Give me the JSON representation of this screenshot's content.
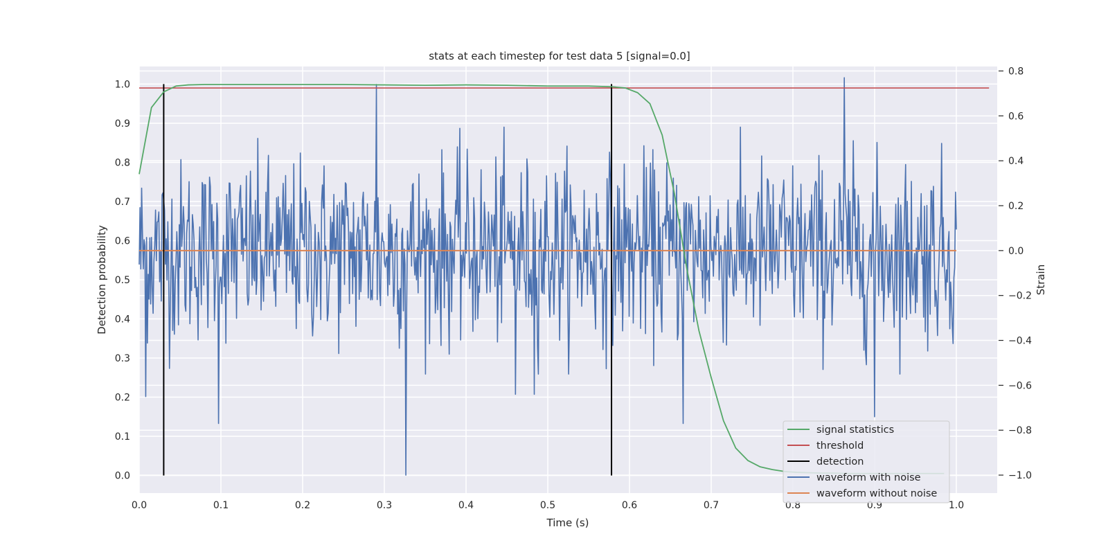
{
  "chart_data": {
    "type": "line",
    "title": "stats at each timestep for test data 5 [signal=0.0]",
    "xlabel": "Time (s)",
    "ylabel": "Detection probability",
    "ylabel_right": "Strain",
    "xlim": [
      0.0,
      1.05
    ],
    "ylim": [
      -0.045,
      1.045
    ],
    "ylim_right": [
      -1.08,
      0.82
    ],
    "grid": true,
    "legend_position": "lower right",
    "x_ticks": [
      0.0,
      0.1,
      0.2,
      0.3,
      0.4,
      0.5,
      0.6,
      0.7,
      0.8,
      0.9,
      1.0
    ],
    "x_tick_labels": [
      "0.0",
      "0.1",
      "0.2",
      "0.3",
      "0.4",
      "0.5",
      "0.6",
      "0.7",
      "0.8",
      "0.9",
      "1.0"
    ],
    "y_ticks": [
      0.0,
      0.1,
      0.2,
      0.3,
      0.4,
      0.5,
      0.6,
      0.7,
      0.8,
      0.9,
      1.0
    ],
    "y_tick_labels": [
      "0.0",
      "0.1",
      "0.2",
      "0.3",
      "0.4",
      "0.5",
      "0.6",
      "0.7",
      "0.8",
      "0.9",
      "1.0"
    ],
    "y_ticks_right": [
      -1.0,
      -0.8,
      -0.6,
      -0.4,
      -0.2,
      0.0,
      0.2,
      0.4,
      0.6,
      0.8
    ],
    "y_tick_labels_right": [
      "−1.0",
      "−0.8",
      "−0.6",
      "−0.4",
      "−0.2",
      "0.0",
      "0.2",
      "0.4",
      "0.6",
      "0.8"
    ],
    "series": [
      {
        "name": "signal statistics",
        "color": "#55a868",
        "axis": "left",
        "x": [
          0.0,
          0.015,
          0.03,
          0.045,
          0.06,
          0.08,
          0.1,
          0.15,
          0.2,
          0.25,
          0.3,
          0.35,
          0.4,
          0.45,
          0.5,
          0.55,
          0.58,
          0.595,
          0.61,
          0.625,
          0.64,
          0.655,
          0.67,
          0.685,
          0.7,
          0.715,
          0.73,
          0.745,
          0.76,
          0.775,
          0.79,
          0.805,
          0.82,
          0.835,
          0.85,
          0.865,
          0.88,
          0.895,
          0.91,
          0.925,
          0.94,
          0.955,
          0.97,
          0.985
        ],
        "y": [
          0.77,
          0.94,
          0.98,
          0.995,
          0.998,
          0.999,
          0.999,
          0.999,
          0.999,
          0.999,
          0.998,
          0.997,
          0.998,
          0.997,
          0.995,
          0.995,
          0.993,
          0.99,
          0.978,
          0.95,
          0.87,
          0.72,
          0.53,
          0.37,
          0.25,
          0.14,
          0.07,
          0.038,
          0.022,
          0.015,
          0.01,
          0.008,
          0.007,
          0.006,
          0.006,
          0.005,
          0.005,
          0.005,
          0.005,
          0.005,
          0.005,
          0.005,
          0.005,
          0.005
        ]
      },
      {
        "name": "threshold",
        "color": "#c44e52",
        "axis": "left",
        "x": [
          0.0,
          1.04
        ],
        "y": [
          0.99,
          0.99
        ]
      },
      {
        "name": "detection",
        "color": "#000000",
        "axis": "left",
        "vlines": [
          0.03,
          0.578
        ],
        "ymin": 0.0,
        "ymax": 1.0
      },
      {
        "name": "waveform with noise",
        "color": "#4c72b0",
        "axis": "right",
        "x_start": 0.0,
        "x_end": 1.0,
        "n_points": 1000,
        "amplitude_std": 0.2,
        "spikes": [
          {
            "x": 0.29,
            "y": 0.74
          },
          {
            "x": 0.326,
            "y": -1.0
          },
          {
            "x": 0.863,
            "y": 0.77
          },
          {
            "x": 0.097,
            "y": -0.77
          },
          {
            "x": 0.666,
            "y": -0.77
          },
          {
            "x": 0.9,
            "y": -0.74
          },
          {
            "x": 0.008,
            "y": -0.65
          },
          {
            "x": 0.46,
            "y": -0.64
          },
          {
            "x": 0.483,
            "y": -0.64
          }
        ]
      },
      {
        "name": "waveform without noise",
        "color": "#dd8452",
        "axis": "right",
        "x": [
          0.0,
          1.0
        ],
        "y": [
          0.0,
          0.0
        ]
      }
    ]
  }
}
